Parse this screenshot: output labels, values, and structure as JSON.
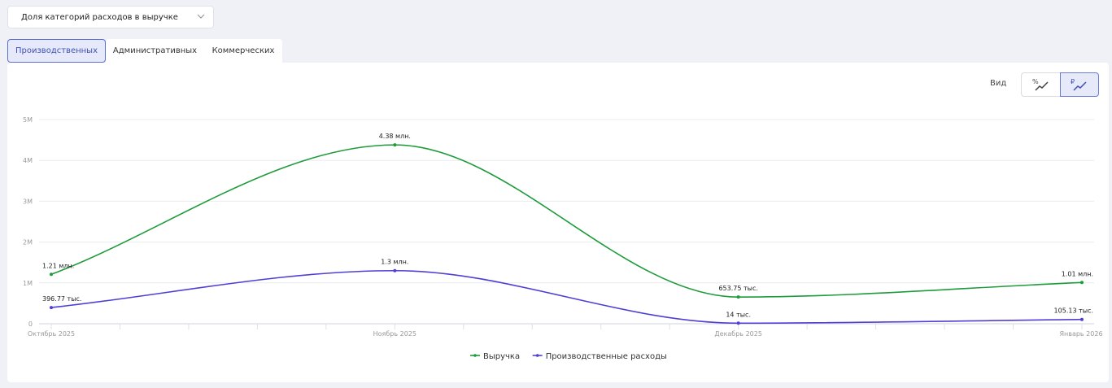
{
  "selector": {
    "value": "Доля категорий расходов в выручке"
  },
  "tabs": [
    {
      "label": "Производственных",
      "active": true
    },
    {
      "label": "Административных",
      "active": false
    },
    {
      "label": "Коммерческих",
      "active": false
    }
  ],
  "view": {
    "label": "Вид",
    "options": [
      {
        "symbol": "%",
        "icon": "percent-line-chart-icon",
        "active": false
      },
      {
        "symbol": "₽",
        "icon": "ruble-line-chart-icon",
        "active": true
      }
    ]
  },
  "colors": {
    "revenue": "#1e9b3a",
    "expenses": "#4f3fd4",
    "accent": "#3f51b5"
  },
  "chart_data": {
    "type": "line",
    "categories": [
      "Октябрь 2025",
      "Ноябрь 2025",
      "Декабрь 2025",
      "Январь 2026"
    ],
    "y_ticks": [
      "0",
      "1M",
      "2M",
      "3M",
      "4M",
      "5M"
    ],
    "ylim": [
      0,
      5000000
    ],
    "grid": true,
    "legend_position": "bottom",
    "series": [
      {
        "name": "Выручка",
        "values": [
          1210000,
          4380000,
          653750,
          1010000
        ],
        "labels": [
          "1.21 млн.",
          "4.38 млн.",
          "653.75 тыс.",
          "1.01 млн."
        ]
      },
      {
        "name": "Производственные расходы",
        "values": [
          396770,
          1300000,
          14000,
          105130
        ],
        "labels": [
          "396.77 тыс.",
          "1.3 млн.",
          "14 тыс.",
          "105.13 тыс."
        ]
      }
    ]
  }
}
